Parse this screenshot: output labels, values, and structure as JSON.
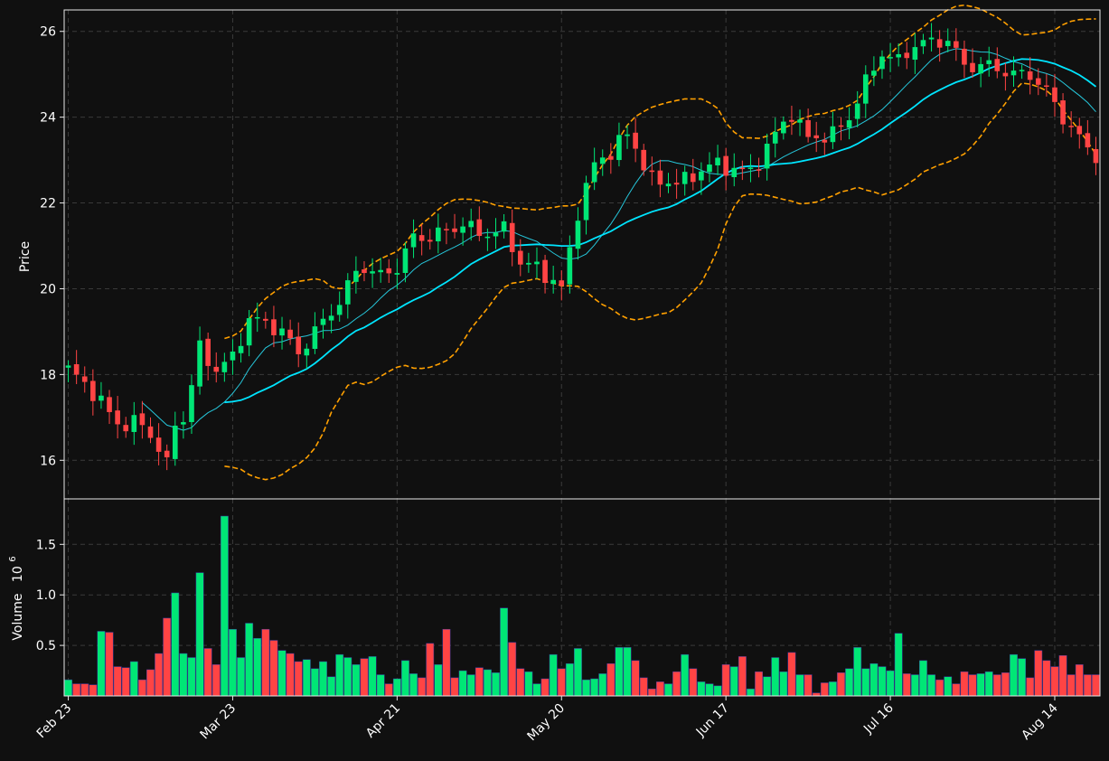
{
  "colors": {
    "background": "#101010",
    "up": "#00e676",
    "down": "#ff4444",
    "ma_short": "#26c6da",
    "ma_long": "#00e5ff",
    "bollinger": "#ffa000",
    "grid": "#3a3a3a",
    "text": "#ffffff"
  },
  "chart_data": {
    "type": "candlestick",
    "grid": true,
    "panels": [
      {
        "name": "price",
        "ylabel": "Price",
        "ylim": [
          15.1,
          26.5
        ],
        "yticks": [
          16,
          18,
          20,
          22,
          24,
          26
        ]
      },
      {
        "name": "volume",
        "ylabel": "Volume",
        "ylabel_exponent": "10",
        "ylabel_exponent_power": "6",
        "ylim": [
          0,
          1.95
        ],
        "yticks": [
          0.5,
          1.0,
          1.5
        ],
        "ytick_labels": [
          "0.5",
          "1.0",
          "1.5"
        ]
      }
    ],
    "xlim": [
      -0.5,
      125.5
    ],
    "xticks": [
      {
        "index": 0,
        "label": "Feb 23"
      },
      {
        "index": 20,
        "label": "Mar 23"
      },
      {
        "index": 40,
        "label": "Apr 21"
      },
      {
        "index": 60,
        "label": "May 20"
      },
      {
        "index": 80,
        "label": "Jun 17"
      },
      {
        "index": 100,
        "label": "Jul 16"
      },
      {
        "index": 120,
        "label": "Aug 14"
      }
    ],
    "anchors": [
      [
        0,
        18.12
      ],
      [
        3,
        17.6
      ],
      [
        6,
        16.85
      ],
      [
        9,
        16.85
      ],
      [
        11,
        16.3
      ],
      [
        12,
        15.85
      ],
      [
        13,
        16.9
      ],
      [
        14,
        16.95
      ],
      [
        16,
        18.6
      ],
      [
        18,
        18.1
      ],
      [
        20,
        18.4
      ],
      [
        22,
        19.3
      ],
      [
        24,
        19.2
      ],
      [
        26,
        19.0
      ],
      [
        28,
        18.5
      ],
      [
        30,
        19.0
      ],
      [
        33,
        19.7
      ],
      [
        35,
        20.4
      ],
      [
        36,
        20.5
      ],
      [
        38,
        20.3
      ],
      [
        40,
        20.5
      ],
      [
        42,
        21.2
      ],
      [
        44,
        21.2
      ],
      [
        48,
        21.5
      ],
      [
        50,
        21.3
      ],
      [
        52,
        21.3
      ],
      [
        53,
        21.4
      ],
      [
        55,
        20.6
      ],
      [
        57,
        20.5
      ],
      [
        60,
        20.0
      ],
      [
        62,
        21.8
      ],
      [
        64,
        22.9
      ],
      [
        66,
        23.2
      ],
      [
        68,
        23.6
      ],
      [
        69,
        23.3
      ],
      [
        71,
        22.5
      ],
      [
        75,
        22.5
      ],
      [
        78,
        22.9
      ],
      [
        81,
        22.8
      ],
      [
        83,
        22.7
      ],
      [
        86,
        23.6
      ],
      [
        88,
        24.1
      ],
      [
        90,
        23.5
      ],
      [
        93,
        23.6
      ],
      [
        95,
        24.0
      ],
      [
        97,
        24.8
      ],
      [
        99,
        25.5
      ],
      [
        101,
        25.3
      ],
      [
        103,
        25.7
      ],
      [
        107,
        25.8
      ],
      [
        109,
        25.2
      ],
      [
        112,
        25.2
      ],
      [
        115,
        25.0
      ],
      [
        117,
        25.0
      ],
      [
        119,
        24.6
      ],
      [
        121,
        24.0
      ],
      [
        123,
        23.5
      ],
      [
        125,
        23.1
      ]
    ],
    "volumes": [
      0.16,
      0.12,
      0.12,
      0.11,
      0.64,
      0.63,
      0.29,
      0.28,
      0.34,
      0.16,
      0.26,
      0.42,
      0.77,
      1.02,
      0.42,
      0.38,
      1.22,
      0.47,
      0.31,
      1.78,
      0.66,
      0.38,
      0.72,
      0.57,
      0.66,
      0.55,
      0.45,
      0.42,
      0.34,
      0.36,
      0.27,
      0.34,
      0.19,
      0.41,
      0.38,
      0.31,
      0.37,
      0.39,
      0.21,
      0.12,
      0.17,
      0.35,
      0.22,
      0.18,
      0.52,
      0.31,
      0.66,
      0.18,
      0.25,
      0.21,
      0.28,
      0.26,
      0.23,
      0.87,
      0.53,
      0.27,
      0.24,
      0.12,
      0.17,
      0.41,
      0.27,
      0.32,
      0.47,
      0.16,
      0.17,
      0.22,
      0.32,
      0.48,
      0.48,
      0.35,
      0.18,
      0.07,
      0.14,
      0.12,
      0.24,
      0.41,
      0.27,
      0.14,
      0.12,
      0.1,
      0.31,
      0.29,
      0.39,
      0.07,
      0.24,
      0.19,
      0.38,
      0.24,
      0.43,
      0.21,
      0.21,
      0.03,
      0.13,
      0.14,
      0.23,
      0.27,
      0.48,
      0.27,
      0.32,
      0.29,
      0.25,
      0.62,
      0.22,
      0.21,
      0.35,
      0.21,
      0.16,
      0.19,
      0.12,
      0.24,
      0.21,
      0.22,
      0.24,
      0.21,
      0.23,
      0.41,
      0.37,
      0.18,
      0.45,
      0.35,
      0.29,
      0.4,
      0.21,
      0.31,
      0.21,
      0.21
    ]
  }
}
